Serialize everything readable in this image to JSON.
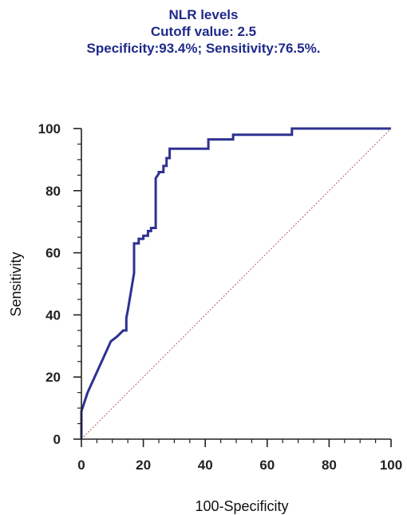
{
  "chart_data": {
    "type": "line",
    "title_lines": [
      "NLR levels",
      "Cutoff value: 2.5",
      "Specificity:93.4%; Sensitivity:76.5%."
    ],
    "xlabel": "100-Specificity",
    "ylabel": "Sensitivity",
    "xlim": [
      0,
      100
    ],
    "ylim": [
      0,
      100
    ],
    "xticks": [
      0,
      20,
      40,
      60,
      80,
      100
    ],
    "yticks": [
      0,
      20,
      40,
      60,
      80,
      100
    ],
    "minor_tick_step": 5,
    "grid": false,
    "series": [
      {
        "color": "#2e3192",
        "style": "solid",
        "x": [
          0,
          0,
          2,
          9.5,
          11.5,
          13.5,
          14.5,
          14.5,
          15,
          17,
          17,
          17.5,
          18.5,
          18.5,
          20,
          20,
          21.5,
          21.5,
          22.5,
          22.5,
          24,
          24,
          25,
          25,
          26.5,
          26.5,
          27.5,
          27.5,
          28.5,
          28.5,
          41,
          41,
          49,
          49,
          68,
          68,
          100
        ],
        "y": [
          0,
          9,
          15,
          31.5,
          33,
          35,
          35,
          39,
          41.5,
          53.5,
          63,
          63,
          63,
          64.5,
          64.5,
          65.5,
          65.5,
          67,
          67,
          68,
          68,
          84,
          85.5,
          86,
          86,
          88,
          88,
          90.5,
          90.5,
          93.5,
          93.5,
          96.5,
          96.5,
          98,
          98,
          100,
          100
        ]
      },
      {
        "color": "#b05050",
        "style": "dotted",
        "x": [
          0,
          100
        ],
        "y": [
          0,
          100
        ]
      }
    ]
  }
}
